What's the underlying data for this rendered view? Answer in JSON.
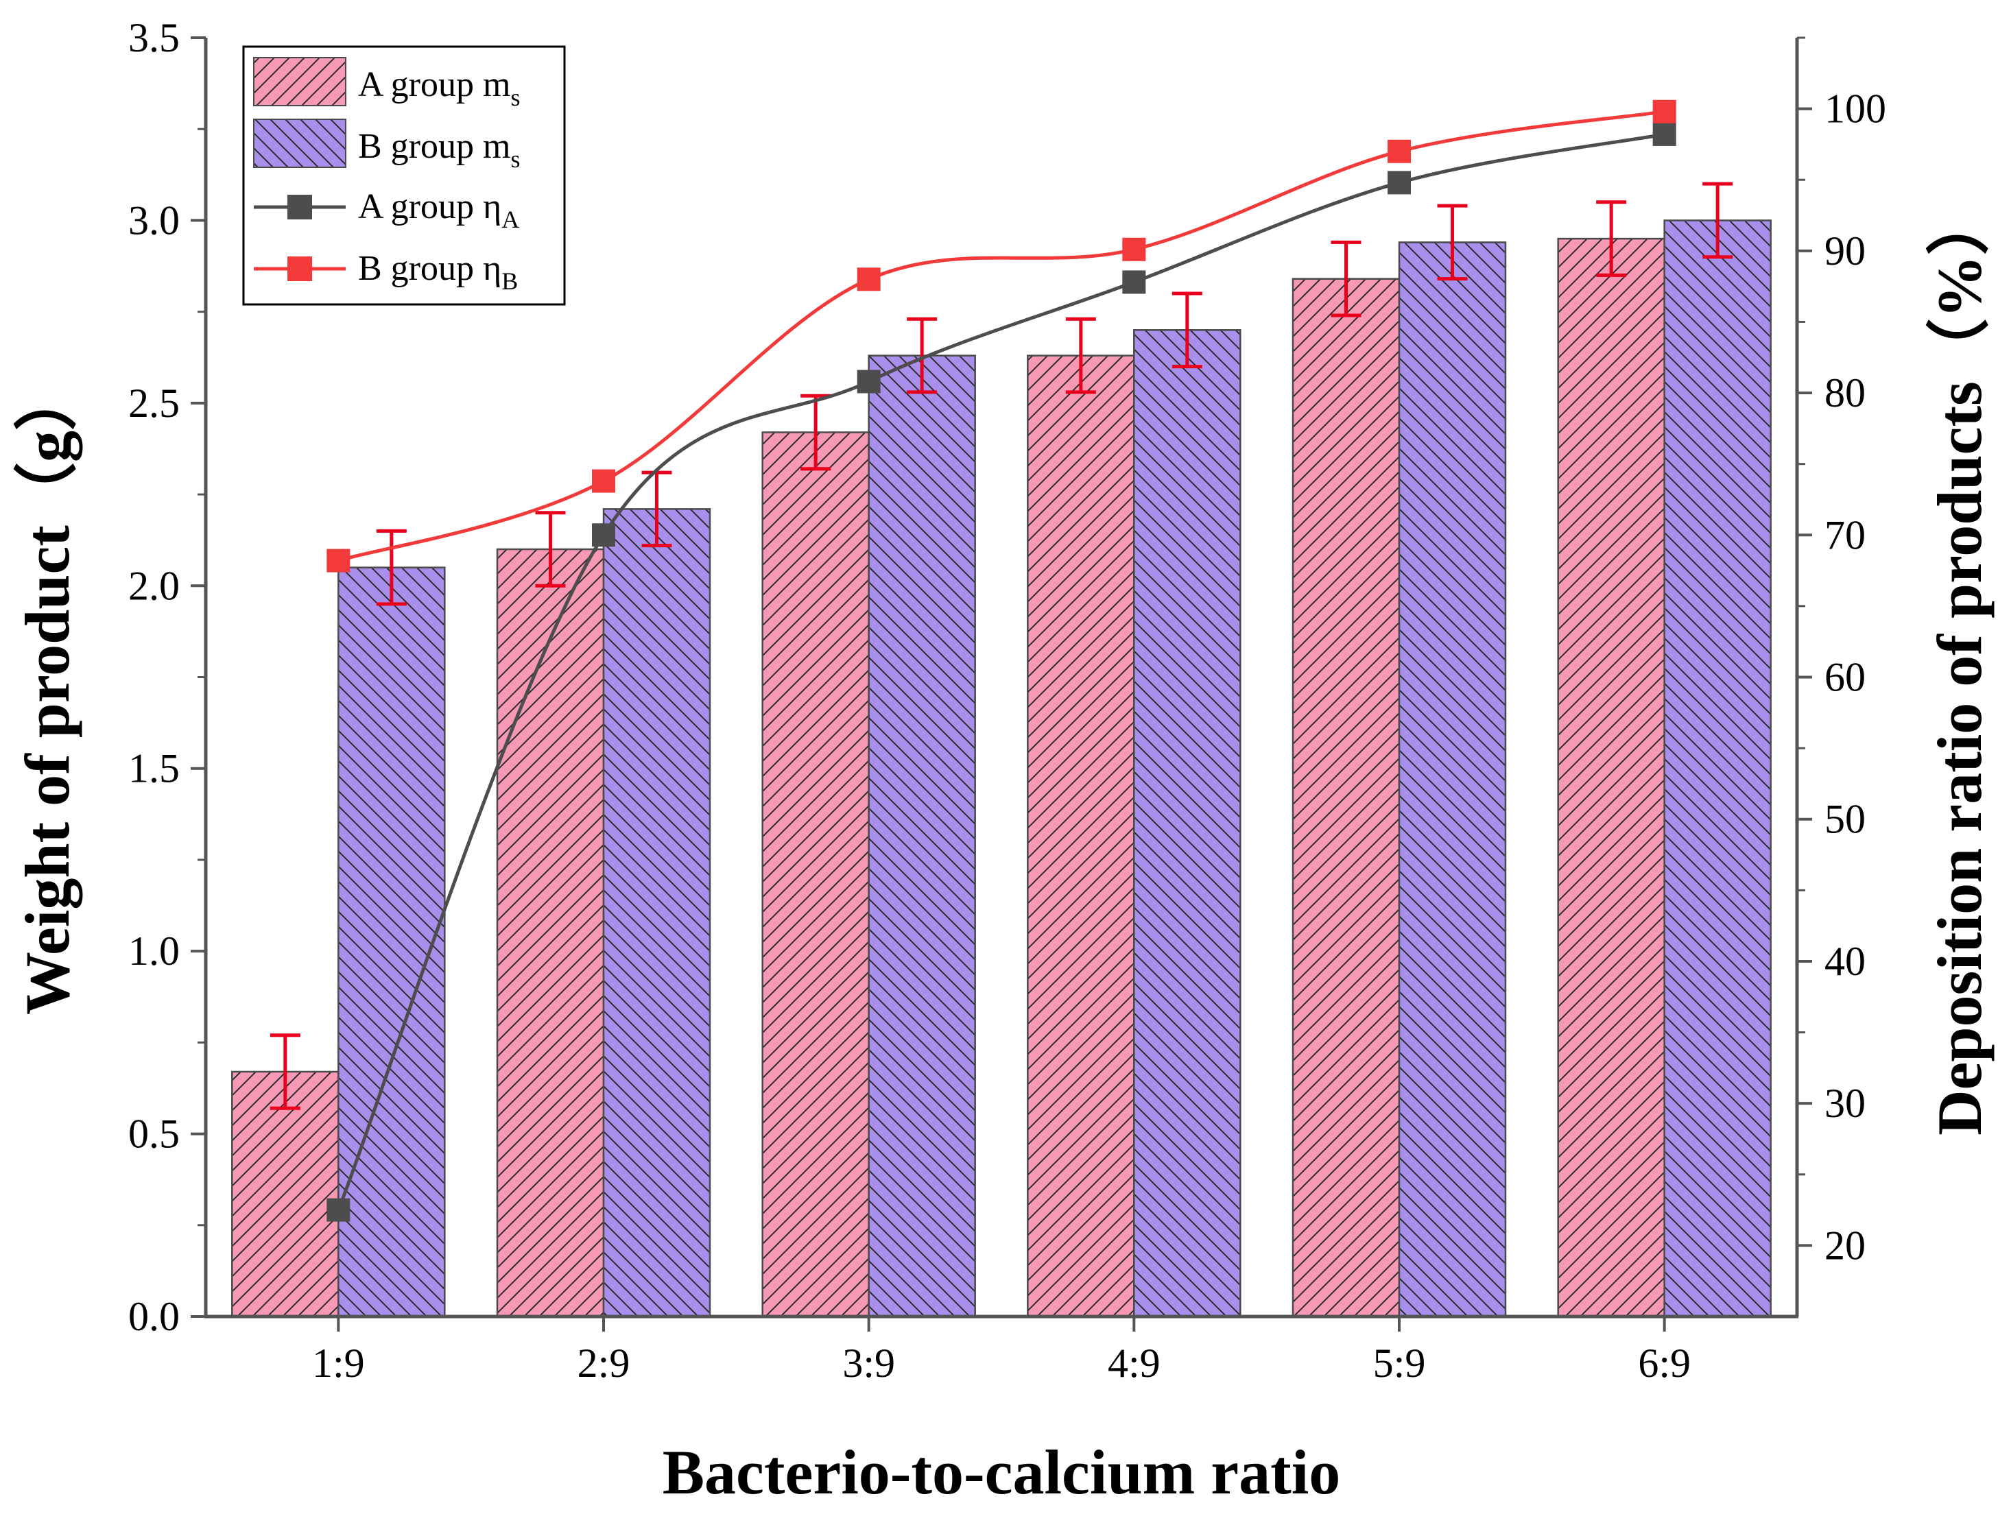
{
  "chart_data": {
    "type": "bar",
    "categories": [
      "1:9",
      "2:9",
      "3:9",
      "4:9",
      "5:9",
      "6:9"
    ],
    "xlabel": "Bacterio-to-calcium ratio",
    "ylabel": "Weight of product（g）",
    "y2label": "Deposition ratio of products（%）",
    "ylim": [
      0,
      3.5
    ],
    "y2lim": [
      15,
      105
    ],
    "yticks": [
      "0.0",
      "0.5",
      "1.0",
      "1.5",
      "2.0",
      "2.5",
      "3.0",
      "3.5"
    ],
    "y2ticks": [
      "20",
      "30",
      "40",
      "50",
      "60",
      "70",
      "80",
      "90",
      "100"
    ],
    "grid": false,
    "legend_position": "top-left",
    "series": [
      {
        "name": "A group m",
        "name_sub": "s",
        "kind": "bar",
        "axis": "left",
        "color": "#f799b5",
        "values": [
          0.67,
          2.1,
          2.42,
          2.63,
          2.84,
          2.95
        ],
        "errors": [
          0.1,
          0.1,
          0.1,
          0.1,
          0.1,
          0.1
        ]
      },
      {
        "name": "B group m",
        "name_sub": "s",
        "kind": "bar",
        "axis": "left",
        "color": "#a98fec",
        "values": [
          2.05,
          2.21,
          2.63,
          2.7,
          2.94,
          3.0
        ],
        "errors": [
          0.1,
          0.1,
          0.1,
          0.1,
          0.1,
          0.1
        ]
      },
      {
        "name": "A group η",
        "name_sub": "A",
        "kind": "line",
        "axis": "right",
        "color": "#4d4d4d",
        "values": [
          22.5,
          70.0,
          80.8,
          87.8,
          94.8,
          98.2
        ]
      },
      {
        "name": "B group η",
        "name_sub": "B",
        "kind": "line",
        "axis": "right",
        "color": "#f23a3a",
        "values": [
          68.2,
          73.8,
          88.0,
          90.1,
          97.0,
          99.8
        ]
      }
    ],
    "colors": {
      "error_bar": "#e8001c",
      "axis": "#555555",
      "bar_edge": "#4a4a4a"
    }
  }
}
